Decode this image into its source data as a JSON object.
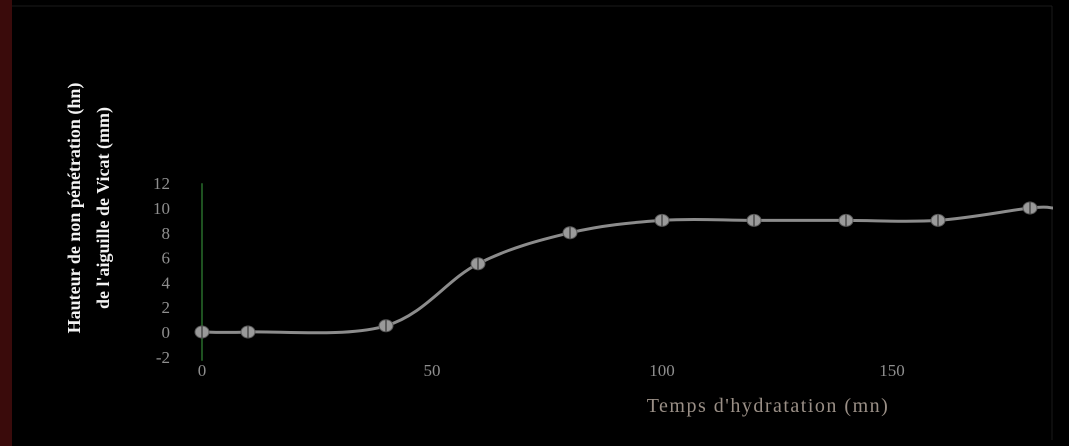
{
  "colors": {
    "background": "#000000",
    "curve": "#8c8c8c",
    "marker": "#9a9a9a",
    "y_axis_line": "#2e7d32",
    "tick_label": "#8f8f8f",
    "xlabel": "#9a8f86",
    "ylabel": "#f2f2f2",
    "frame_left": "#7a1a1a"
  },
  "chart_data": {
    "type": "line",
    "title": "",
    "xlabel": "Temps d'hydratation (mn)",
    "ylabel_line1": "Hauteur de non pénétration (hn)",
    "ylabel_line2": "de l'aiguille de Vicat (mm)",
    "xlim": [
      0,
      185
    ],
    "ylim": [
      -2,
      12
    ],
    "x_ticks": [
      0,
      50,
      100,
      150
    ],
    "y_ticks": [
      -2,
      0,
      2,
      4,
      6,
      8,
      10,
      12
    ],
    "grid": false,
    "legend": "none",
    "series": [
      {
        "x": [
          0,
          10,
          40,
          60,
          80,
          100,
          120,
          140,
          160,
          180,
          185
        ],
        "y": [
          0,
          0,
          0.5,
          5.5,
          8,
          9,
          9,
          9,
          9,
          10,
          10
        ]
      }
    ],
    "marker_count": 10
  }
}
